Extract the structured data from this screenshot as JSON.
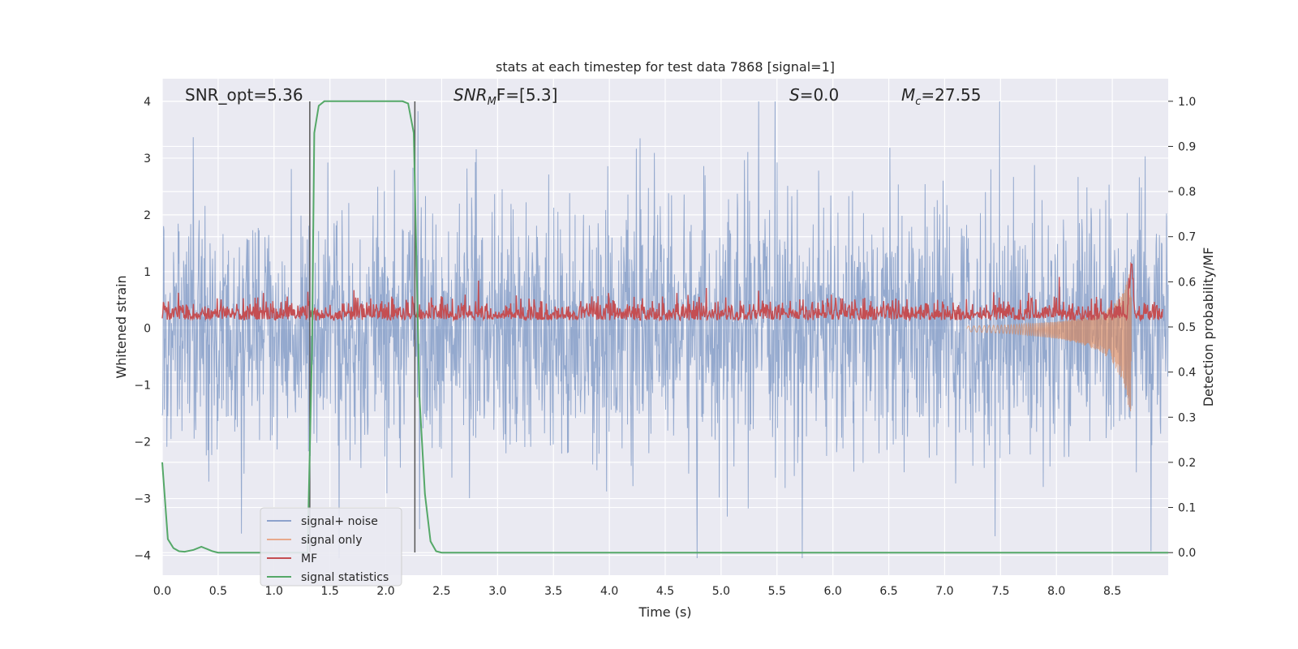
{
  "chart_data": {
    "type": "line",
    "title": "stats at each timestep for test data 7868 [signal=1]",
    "xlabel": "Time (s)",
    "ylabel_left": "Whitened strain",
    "ylabel_right": "Detection probability/MF",
    "xlim": [
      0.0,
      9.0
    ],
    "ylim_left": [
      -4.35,
      4.4
    ],
    "ylim_right": [
      -0.05,
      1.05
    ],
    "xticks": [
      "0.0",
      "0.5",
      "1.0",
      "1.5",
      "2.0",
      "2.5",
      "3.0",
      "3.5",
      "4.0",
      "4.5",
      "5.0",
      "5.5",
      "6.0",
      "6.5",
      "7.0",
      "7.5",
      "8.0",
      "8.5"
    ],
    "yticks_left": [
      "4",
      "3",
      "2",
      "1",
      "0",
      "−1",
      "−2",
      "−3",
      "−4"
    ],
    "yticks_right": [
      "1.0",
      "0.9",
      "0.8",
      "0.7",
      "0.6",
      "0.5",
      "0.4",
      "0.3",
      "0.2",
      "0.1",
      "0.0"
    ],
    "annotations": {
      "snr_opt": "SNR_opt=5.36",
      "snr_mf_base": "SNR",
      "snr_mf_sub": "M",
      "snr_mf_rest": "F=[5.3]",
      "s_var": "S",
      "s_rest": "=0.0",
      "mc_base": "M",
      "mc_sub": "c",
      "mc_rest": "=27.55"
    },
    "vlines": [
      1.32,
      2.26
    ],
    "series": [
      {
        "name": "signal+ noise",
        "color": "#4c72b0",
        "axis": "left",
        "description": "whitened strain, noise-dominated, roughly gaussian with std ~1.4 over 0-9 s"
      },
      {
        "name": "signal only",
        "color": "#dd8452",
        "axis": "left",
        "description": "chirp rising near 8.4-8.7 s",
        "chirp_x": [
          7.2,
          7.6,
          8.0,
          8.2,
          8.4,
          8.5,
          8.6,
          8.65,
          8.67
        ],
        "chirp_amp": [
          0.05,
          0.08,
          0.15,
          0.22,
          0.35,
          0.5,
          0.8,
          1.2,
          1.4
        ]
      },
      {
        "name": "MF",
        "color": "#c44e52",
        "axis": "right",
        "description": "matched filter output, ~0.5-0.57, peak ~0.64 at 8.67 s"
      },
      {
        "name": "signal statistics",
        "color": "#55a868",
        "axis": "right",
        "x": [
          0.0,
          0.05,
          0.1,
          0.15,
          0.2,
          0.28,
          0.35,
          0.4,
          0.45,
          0.5,
          1.0,
          1.3,
          1.34,
          1.36,
          1.4,
          1.45,
          2.15,
          2.2,
          2.25,
          2.3,
          2.35,
          2.4,
          2.45,
          2.5,
          9.0
        ],
        "y": [
          0.2,
          0.03,
          0.01,
          0.003,
          0.002,
          0.006,
          0.013,
          0.008,
          0.003,
          0.0,
          0.0,
          0.0,
          0.45,
          0.93,
          0.99,
          1.0,
          1.0,
          0.995,
          0.93,
          0.35,
          0.13,
          0.025,
          0.003,
          0.0,
          0.0
        ]
      }
    ],
    "legend": {
      "position": "lower-left",
      "entries": [
        "signal+ noise",
        "signal only",
        "MF",
        "signal statistics"
      ],
      "colors": [
        "#8da2cc",
        "#e8a98c",
        "#c44e52",
        "#55a868"
      ]
    },
    "colors": {
      "background": "#eaeaf2",
      "grid": "#ffffff",
      "vline": "#555555"
    }
  }
}
